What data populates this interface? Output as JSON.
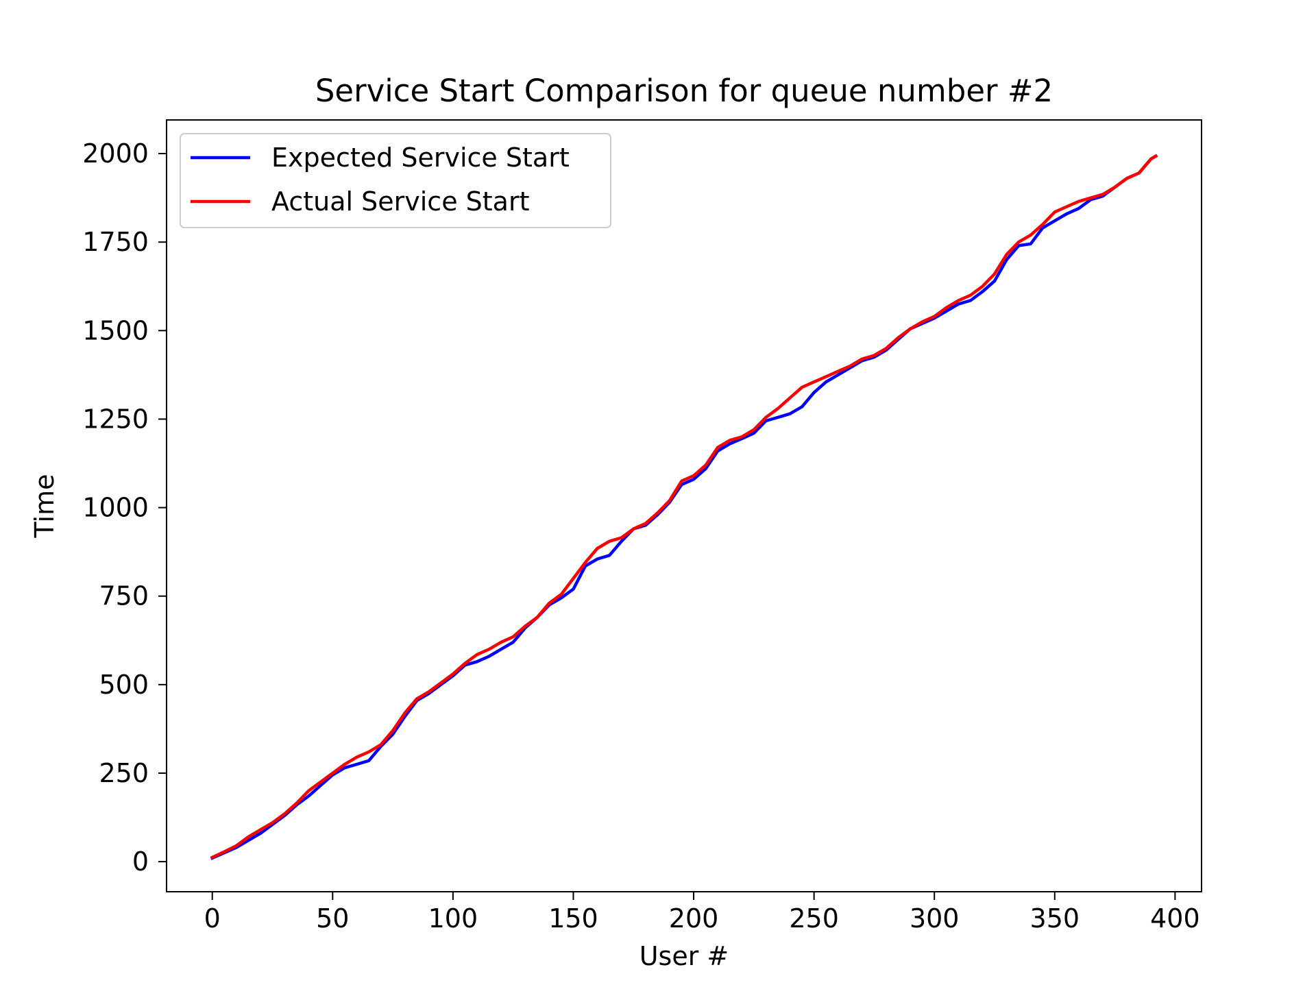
{
  "chart_data": {
    "type": "line",
    "title": "Service Start Comparison for queue number #2",
    "xlabel": "User #",
    "ylabel": "Time",
    "xlim": [
      -19,
      411
    ],
    "ylim": [
      -85,
      2095
    ],
    "xticks": [
      0,
      50,
      100,
      150,
      200,
      250,
      300,
      350,
      400
    ],
    "yticks": [
      0,
      250,
      500,
      750,
      1000,
      1250,
      1500,
      1750,
      2000
    ],
    "grid": false,
    "legend": "upper-left",
    "series": [
      {
        "name": "Expected Service Start",
        "color": "#0000ff",
        "x": [
          0,
          5,
          10,
          15,
          20,
          25,
          30,
          35,
          40,
          45,
          50,
          55,
          60,
          65,
          70,
          75,
          80,
          85,
          90,
          95,
          100,
          105,
          110,
          115,
          120,
          125,
          130,
          135,
          140,
          145,
          150,
          155,
          160,
          165,
          170,
          175,
          180,
          185,
          190,
          195,
          200,
          205,
          210,
          215,
          220,
          225,
          230,
          235,
          240,
          245,
          250,
          255,
          260,
          265,
          270,
          275,
          280,
          285,
          290,
          295,
          300,
          305,
          310,
          315,
          320,
          325,
          330,
          335,
          340,
          345,
          350,
          355,
          360,
          365,
          370,
          375,
          380,
          385,
          390,
          392
        ],
        "y": [
          10,
          25,
          40,
          60,
          80,
          105,
          130,
          160,
          185,
          215,
          245,
          265,
          275,
          285,
          325,
          360,
          410,
          455,
          475,
          500,
          525,
          555,
          565,
          580,
          600,
          620,
          660,
          690,
          725,
          745,
          770,
          835,
          855,
          865,
          905,
          940,
          950,
          980,
          1015,
          1065,
          1080,
          1110,
          1160,
          1180,
          1195,
          1210,
          1245,
          1255,
          1265,
          1285,
          1325,
          1355,
          1375,
          1395,
          1415,
          1425,
          1445,
          1475,
          1505,
          1520,
          1535,
          1555,
          1575,
          1585,
          1610,
          1640,
          1700,
          1740,
          1745,
          1790,
          1810,
          1830,
          1845,
          1870,
          1880,
          1905,
          1930,
          1945,
          1985,
          1993
        ]
      },
      {
        "name": "Actual Service Start",
        "color": "#ff0000",
        "x": [
          0,
          5,
          10,
          15,
          20,
          25,
          30,
          35,
          40,
          45,
          50,
          55,
          60,
          65,
          70,
          75,
          80,
          85,
          90,
          95,
          100,
          105,
          110,
          115,
          120,
          125,
          130,
          135,
          140,
          145,
          150,
          155,
          160,
          165,
          170,
          175,
          180,
          185,
          190,
          195,
          200,
          205,
          210,
          215,
          220,
          225,
          230,
          235,
          240,
          245,
          250,
          255,
          260,
          265,
          270,
          275,
          280,
          285,
          290,
          295,
          300,
          305,
          310,
          315,
          320,
          325,
          330,
          335,
          340,
          345,
          350,
          355,
          360,
          365,
          370,
          375,
          380,
          385,
          390,
          392
        ],
        "y": [
          12,
          28,
          45,
          70,
          90,
          110,
          135,
          165,
          200,
          225,
          250,
          275,
          295,
          310,
          330,
          370,
          420,
          460,
          480,
          505,
          530,
          560,
          585,
          600,
          620,
          635,
          665,
          690,
          730,
          755,
          800,
          845,
          885,
          905,
          915,
          940,
          955,
          985,
          1020,
          1075,
          1090,
          1120,
          1170,
          1190,
          1200,
          1220,
          1255,
          1280,
          1310,
          1340,
          1355,
          1370,
          1385,
          1400,
          1420,
          1430,
          1450,
          1480,
          1505,
          1525,
          1540,
          1565,
          1585,
          1600,
          1625,
          1660,
          1715,
          1750,
          1770,
          1800,
          1835,
          1850,
          1865,
          1875,
          1885,
          1905,
          1930,
          1945,
          1985,
          1993
        ]
      }
    ]
  }
}
